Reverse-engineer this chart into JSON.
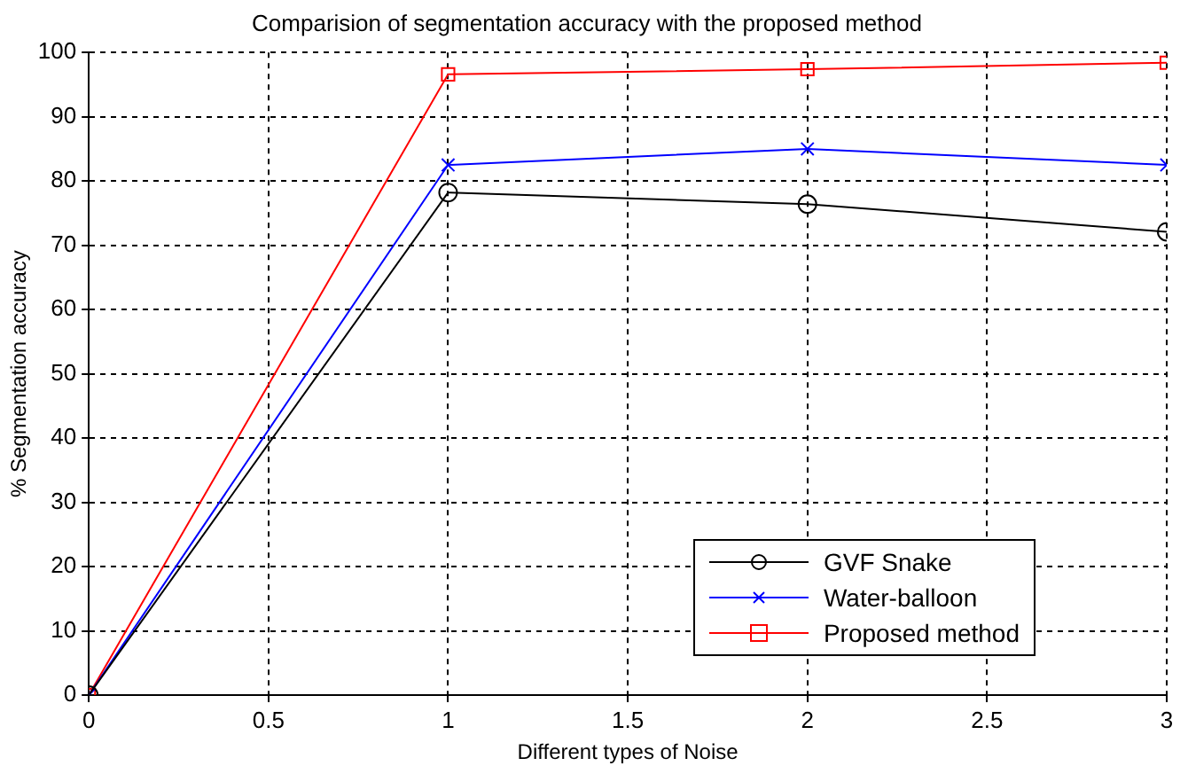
{
  "chart_data": {
    "type": "line",
    "title": "Comparision of segmentation accuracy with the proposed method",
    "xlabel": "Different types of Noise",
    "ylabel": "% Segmentation accuracy",
    "x": [
      0,
      1,
      2,
      3
    ],
    "series": [
      {
        "name": "GVF Snake",
        "color": "#000000",
        "marker": "circle",
        "values": [
          0,
          78.2,
          76.4,
          72.1
        ]
      },
      {
        "name": "Water-balloon",
        "color": "#0000ff",
        "marker": "cross",
        "values": [
          0,
          82.5,
          85,
          82.5
        ]
      },
      {
        "name": "Proposed method",
        "color": "#ff0000",
        "marker": "square",
        "values": [
          0,
          96.6,
          97.4,
          98.4
        ]
      }
    ],
    "xlim": [
      0,
      3
    ],
    "xticks": [
      0,
      0.5,
      1,
      1.5,
      2,
      2.5,
      3
    ],
    "ylim": [
      0,
      100
    ],
    "yticks": [
      0,
      10,
      20,
      30,
      40,
      50,
      60,
      70,
      80,
      90,
      100
    ],
    "grid": true,
    "legend": "bottom right",
    "line_style": "solid"
  }
}
